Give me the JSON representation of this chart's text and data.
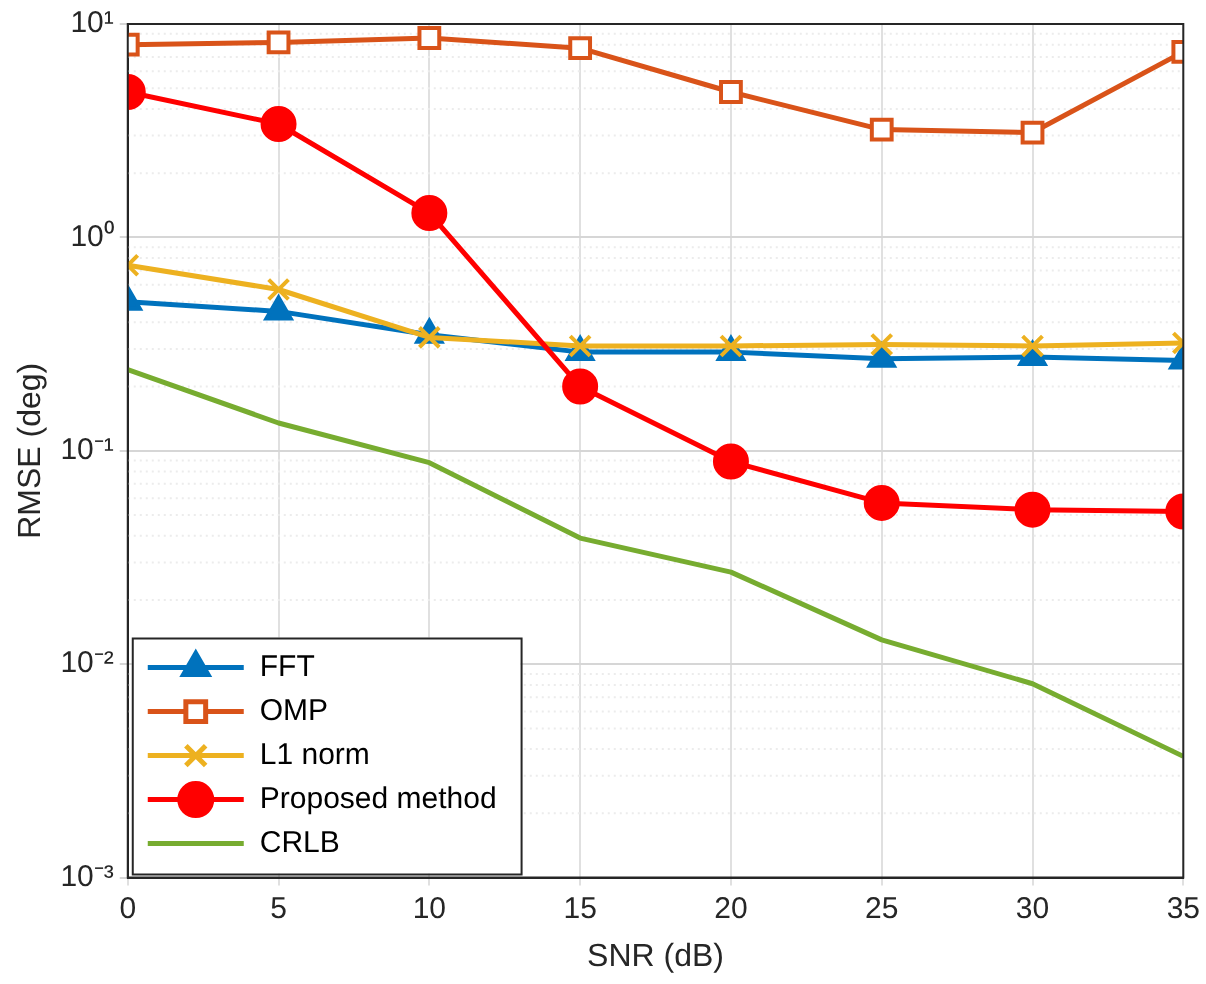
{
  "chart_data": {
    "type": "line",
    "xlabel": "SNR (dB)",
    "ylabel": "RMSE (deg)",
    "x": [
      0,
      5,
      10,
      15,
      20,
      25,
      30,
      35
    ],
    "xlim": [
      0,
      35
    ],
    "xticks": [
      0,
      5,
      10,
      15,
      20,
      25,
      30,
      35
    ],
    "log": "y",
    "ylim": [
      0.001,
      10
    ],
    "yticks": [
      {
        "value": 0.001,
        "label": "10⁻³"
      },
      {
        "value": 0.01,
        "label": "10⁻²"
      },
      {
        "value": 0.1,
        "label": "10⁻¹"
      },
      {
        "value": 1,
        "label": "10⁰"
      },
      {
        "value": 10,
        "label": "10¹"
      }
    ],
    "grid": true,
    "legend": "bottom left",
    "line_style": "solid",
    "series": [
      {
        "name": "FFT",
        "color": "#0072bd",
        "marker": "triangle",
        "values": [
          0.5,
          0.45,
          0.35,
          0.29,
          0.29,
          0.27,
          0.275,
          0.265
        ]
      },
      {
        "name": "OMP",
        "color": "#d95319",
        "marker": "square",
        "values": [
          8.0,
          8.2,
          8.6,
          7.7,
          4.8,
          3.2,
          3.1,
          7.4
        ]
      },
      {
        "name": "L1 norm",
        "color": "#edb120",
        "marker": "cross",
        "values": [
          0.74,
          0.57,
          0.34,
          0.31,
          0.31,
          0.315,
          0.31,
          0.32
        ]
      },
      {
        "name": "Proposed method",
        "color": "#ff0000",
        "marker": "circle",
        "values": [
          4.8,
          3.4,
          1.3,
          0.2,
          0.089,
          0.057,
          0.053,
          0.052
        ]
      },
      {
        "name": "CRLB",
        "color": "#77ac30",
        "marker": "none",
        "values": [
          0.24,
          0.135,
          0.088,
          0.039,
          0.027,
          0.013,
          0.0081,
          0.0037
        ]
      }
    ]
  }
}
